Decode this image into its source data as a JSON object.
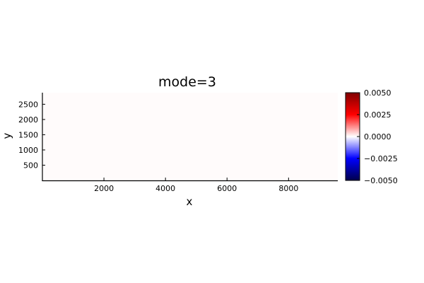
{
  "chart_data": {
    "type": "heatmap",
    "title": "mode=3",
    "xlabel": "x",
    "ylabel": "y",
    "xlim": [
      0,
      9600
    ],
    "ylim": [
      0,
      2880
    ],
    "x_ticks": [
      2000,
      4000,
      6000,
      8000
    ],
    "x_tick_labels": [
      "2000",
      "4000",
      "6000",
      "8000"
    ],
    "y_ticks": [
      500,
      1000,
      1500,
      2000,
      2500
    ],
    "y_tick_labels": [
      "500",
      "1000",
      "1500",
      "2000",
      "2500"
    ],
    "grid": false,
    "field_value": 0.0,
    "fill_color": "#fffbfb",
    "colorbar": {
      "colormap": "seismic",
      "range": [
        -0.005,
        0.005
      ],
      "ticks": [
        0.005,
        0.0025,
        0.0,
        -0.0025,
        -0.005
      ],
      "tick_labels": [
        "0.0050",
        "0.0025",
        "0.0000",
        "−0.0025",
        "−0.0050"
      ]
    }
  }
}
